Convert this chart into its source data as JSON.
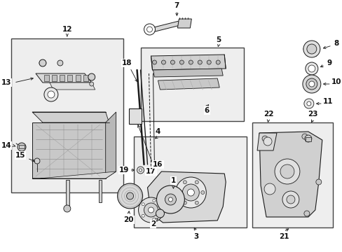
{
  "bg_color": "#f5f5f5",
  "line_color": "#1a1a1a",
  "text_color": "#111111",
  "figsize": [
    4.89,
    3.6
  ],
  "dpi": 100,
  "box_fill": "#e8e8e8",
  "box_edge": "#333333",
  "part_fill": "#f0f0f0",
  "part_edge": "#222222"
}
